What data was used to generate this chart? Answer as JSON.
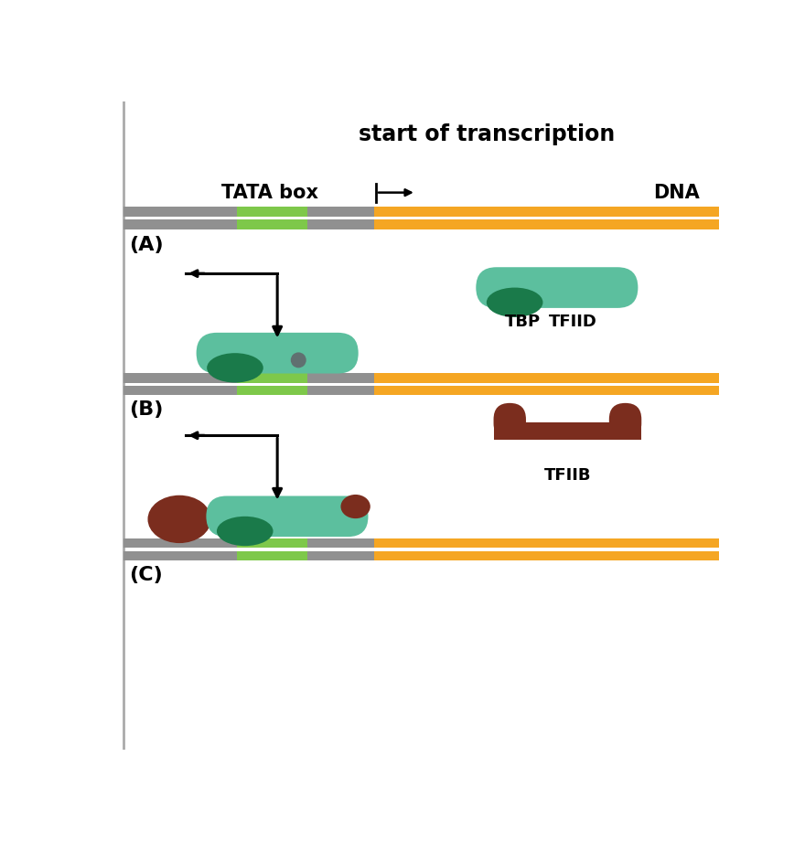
{
  "bg_color": "#ffffff",
  "dna_gray": "#909090",
  "dna_green": "#7ec84a",
  "dna_orange": "#f5a623",
  "tfiid_light": "#5cbf9e",
  "tfiid_dark": "#1a7a4a",
  "tfiib_color": "#7b2d1e",
  "dot_color": "#607070",
  "title": "start of transcription",
  "tata_label": "TATA box",
  "dna_label": "DNA",
  "tbp_label": "TBP",
  "tfiid_label": "TFIID",
  "tfiib_label": "TFIIB",
  "label_A": "(A)",
  "label_B": "(B)",
  "label_C": "(C)",
  "line_color": "#aaaaaa"
}
